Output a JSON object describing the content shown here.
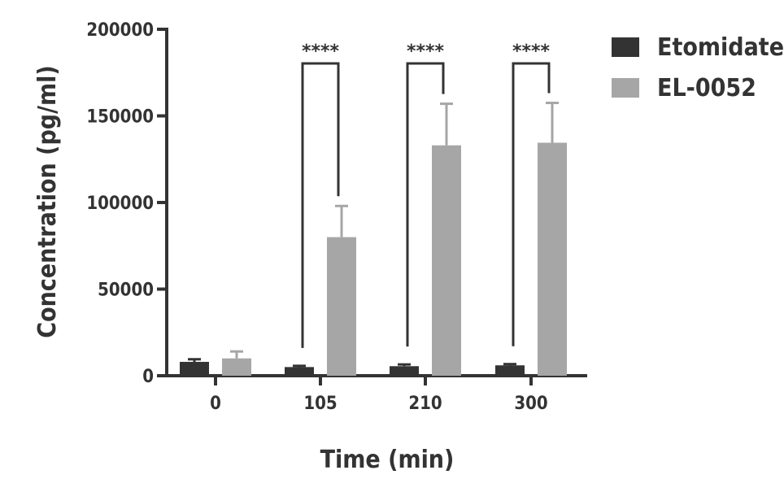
{
  "chart_data": {
    "type": "bar",
    "categories": [
      "0",
      "105",
      "210",
      "300"
    ],
    "series": [
      {
        "name": "Etomidate",
        "color": "#333333",
        "values": [
          8000,
          5000,
          5500,
          6000
        ],
        "errors": [
          1500,
          700,
          1000,
          700
        ]
      },
      {
        "name": "EL-0052",
        "color": "#a6a6a6",
        "values": [
          10000,
          80000,
          133000,
          134500
        ],
        "errors": [
          4000,
          18000,
          24000,
          23000
        ]
      }
    ],
    "significance": [
      "**",
      "****",
      "****",
      "****"
    ],
    "significance_shown": [
      false,
      true,
      true,
      true
    ],
    "xlabel": "Time (min)",
    "ylabel": "Concentration (pg/ml)",
    "ylim": [
      0,
      200000
    ],
    "yticks": [
      0,
      50000,
      100000,
      150000,
      200000
    ],
    "ytick_labels": [
      "0",
      "50000",
      "100000",
      "150000",
      "200000"
    ],
    "legend_position": "top-right",
    "grid": false
  }
}
